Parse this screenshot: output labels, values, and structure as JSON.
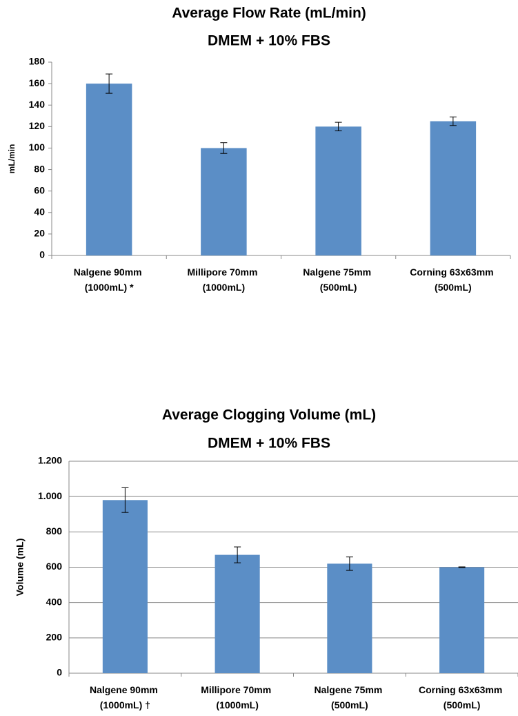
{
  "chart_data": [
    {
      "type": "bar",
      "title": "Average Flow Rate (mL/min)",
      "subtitle": "DMEM + 10% FBS",
      "y_label": "mL/min",
      "categories": [
        "Nalgene 90mm (1000mL) *",
        "Millipore 70mm (1000mL)",
        "Nalgene 75mm (500mL)",
        "Corning 63x63mm (500mL)"
      ],
      "values": [
        160,
        100,
        120,
        125
      ],
      "errors": [
        9,
        5,
        4,
        4
      ],
      "color": "#5b8ec6",
      "ylim": [
        0,
        180
      ],
      "yticks": [
        0,
        20,
        40,
        60,
        80,
        100,
        120,
        140,
        160,
        180
      ],
      "grid": false
    },
    {
      "type": "bar",
      "title": "Average Clogging Volume (mL)",
      "subtitle": "DMEM + 10% FBS",
      "y_label": "Volume (mL)",
      "categories": [
        "Nalgene 90mm (1000mL) †",
        "Millipore 70mm (1000mL)",
        "Nalgene 75mm (500mL)",
        "Corning 63x63mm (500mL)"
      ],
      "values": [
        980,
        670,
        620,
        600
      ],
      "errors": [
        70,
        45,
        38,
        2
      ],
      "color": "#5b8ec6",
      "ylim": [
        0,
        1200
      ],
      "yticks": [
        0,
        200,
        400,
        600,
        800,
        {
          "value": 1000,
          "label": "1.000"
        },
        {
          "value": 1200,
          "label": "1.200"
        }
      ],
      "grid": true
    }
  ]
}
